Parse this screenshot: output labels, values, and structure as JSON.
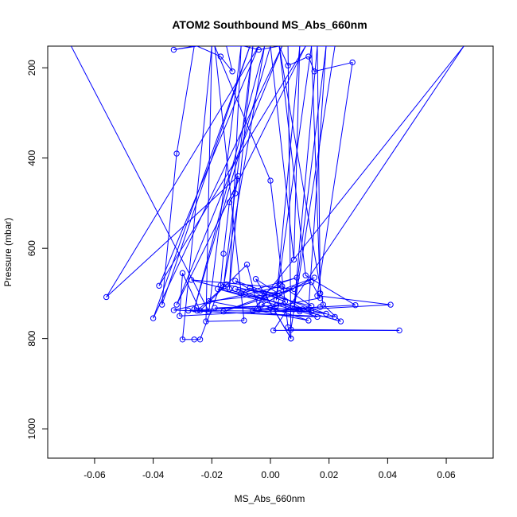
{
  "chart_data": {
    "type": "line",
    "title": "ATOM2 Southbound MS_Abs_660nm",
    "xlabel": "MS_Abs_660nm",
    "ylabel": "Pressure (mbar)",
    "xlim": [
      -0.076,
      0.076
    ],
    "ylim": [
      1065,
      152
    ],
    "y_reversed": true,
    "x_ticks": [
      -0.06,
      -0.04,
      -0.02,
      0.0,
      0.02,
      0.04,
      0.06
    ],
    "x_tick_labels": [
      "-0.06",
      "-0.04",
      "-0.02",
      "0.00",
      "0.02",
      "0.04",
      "0.06"
    ],
    "y_ticks": [
      200,
      400,
      600,
      800,
      1000
    ],
    "y_tick_labels": [
      "200",
      "400",
      "600",
      "800",
      "1000"
    ],
    "grid": false,
    "legend": "none",
    "series": [
      {
        "color": "#0000ff",
        "marker": "open-circle",
        "line": true,
        "points": [
          {
            "x": -0.068,
            "y": 152
          },
          {
            "x": -0.021,
            "y": 740
          },
          {
            "x": -0.01,
            "y": 152
          },
          {
            "x": -0.014,
            "y": 690
          },
          {
            "x": -0.006,
            "y": 152
          },
          {
            "x": -0.016,
            "y": 685
          },
          {
            "x": -0.002,
            "y": 152
          },
          {
            "x": -0.026,
            "y": 735
          },
          {
            "x": 0.0,
            "y": 152
          },
          {
            "x": 0.008,
            "y": 625
          },
          {
            "x": 0.01,
            "y": 152
          },
          {
            "x": 0.002,
            "y": 715
          },
          {
            "x": 0.014,
            "y": 152
          },
          {
            "x": 0.017,
            "y": 700
          },
          {
            "x": 0.016,
            "y": 152
          },
          {
            "x": 0.008,
            "y": 735
          },
          {
            "x": 0.019,
            "y": 152
          },
          {
            "x": 0.013,
            "y": 735
          },
          {
            "x": 0.041,
            "y": 725
          },
          {
            "x": 0.016,
            "y": 705
          },
          {
            "x": 0.028,
            "y": 188
          },
          {
            "x": 0.015,
            "y": 208
          },
          {
            "x": 0.013,
            "y": 175
          },
          {
            "x": 0.006,
            "y": 195
          },
          {
            "x": 0.003,
            "y": 152
          },
          {
            "x": -0.004,
            "y": 160
          },
          {
            "x": -0.009,
            "y": 152
          },
          {
            "x": -0.011,
            "y": 152
          },
          {
            "x": -0.015,
            "y": 152
          },
          {
            "x": -0.013,
            "y": 208
          },
          {
            "x": -0.017,
            "y": 175
          },
          {
            "x": -0.025,
            "y": 152
          },
          {
            "x": -0.033,
            "y": 160
          },
          {
            "x": -0.026,
            "y": 152
          },
          {
            "x": -0.032,
            "y": 390
          },
          {
            "x": -0.037,
            "y": 725
          },
          {
            "x": -0.007,
            "y": 152
          },
          {
            "x": -0.04,
            "y": 755
          },
          {
            "x": 0.004,
            "y": 152
          },
          {
            "x": -0.032,
            "y": 725
          },
          {
            "x": 0.012,
            "y": 152
          },
          {
            "x": -0.038,
            "y": 683
          },
          {
            "x": -0.004,
            "y": 152
          },
          {
            "x": -0.056,
            "y": 708
          },
          {
            "x": -0.011,
            "y": 440
          },
          {
            "x": -0.012,
            "y": 478
          },
          {
            "x": -0.014,
            "y": 498
          },
          {
            "x": -0.016,
            "y": 612
          },
          {
            "x": -0.017,
            "y": 682
          },
          {
            "x": -0.024,
            "y": 802
          },
          {
            "x": -0.026,
            "y": 802
          },
          {
            "x": -0.03,
            "y": 802
          },
          {
            "x": -0.02,
            "y": 152
          },
          {
            "x": -0.022,
            "y": 762
          },
          {
            "x": -0.009,
            "y": 760
          },
          {
            "x": -0.019,
            "y": 152
          },
          {
            "x": 0.0,
            "y": 450
          },
          {
            "x": 0.006,
            "y": 775
          },
          {
            "x": 0.007,
            "y": 800
          },
          {
            "x": 0.006,
            "y": 152
          },
          {
            "x": 0.022,
            "y": 152
          },
          {
            "x": 0.007,
            "y": 780
          },
          {
            "x": 0.044,
            "y": 782
          },
          {
            "x": 0.001,
            "y": 782
          },
          {
            "x": 0.066,
            "y": 152
          },
          {
            "x": -0.006,
            "y": 738
          },
          {
            "x": 0.029,
            "y": 726
          },
          {
            "x": 0.012,
            "y": 660
          },
          {
            "x": 0.003,
            "y": 152
          },
          {
            "x": 0.018,
            "y": 725
          },
          {
            "x": 0.024,
            "y": 762
          },
          {
            "x": 0.01,
            "y": 736
          },
          {
            "x": -0.031,
            "y": 750
          },
          {
            "x": -0.03,
            "y": 655
          },
          {
            "x": -0.024,
            "y": 738
          },
          {
            "x": -0.008,
            "y": 636
          },
          {
            "x": -0.004,
            "y": 736
          },
          {
            "x": 0.017,
            "y": 710
          },
          {
            "x": 0.014,
            "y": 675
          },
          {
            "x": -0.002,
            "y": 710
          },
          {
            "x": -0.012,
            "y": 672
          },
          {
            "x": 0.022,
            "y": 752
          },
          {
            "x": -0.033,
            "y": 737
          },
          {
            "x": 0.004,
            "y": 684
          },
          {
            "x": 0.014,
            "y": 728
          },
          {
            "x": -0.015,
            "y": 680
          },
          {
            "x": -0.025,
            "y": 738
          },
          {
            "x": 0.014,
            "y": 740
          },
          {
            "x": -0.027,
            "y": 670
          },
          {
            "x": 0.008,
            "y": 690
          },
          {
            "x": -0.016,
            "y": 740
          },
          {
            "x": 0.015,
            "y": 665
          },
          {
            "x": -0.003,
            "y": 725
          },
          {
            "x": 0.013,
            "y": 760
          },
          {
            "x": -0.021,
            "y": 717
          },
          {
            "x": 0.003,
            "y": 700
          },
          {
            "x": -0.012,
            "y": 690
          },
          {
            "x": 0.016,
            "y": 752
          },
          {
            "x": -0.028,
            "y": 738
          },
          {
            "x": 0.002,
            "y": 727
          },
          {
            "x": -0.019,
            "y": 732
          },
          {
            "x": 0.011,
            "y": 735
          },
          {
            "x": -0.005,
            "y": 668
          },
          {
            "x": 0.007,
            "y": 800
          },
          {
            "x": -0.002,
            "y": 700
          },
          {
            "x": 0.003,
            "y": 678
          },
          {
            "x": 0.009,
            "y": 665
          },
          {
            "x": -0.01,
            "y": 700
          },
          {
            "x": -0.007,
            "y": 688
          },
          {
            "x": 0.005,
            "y": 718
          },
          {
            "x": 0.0,
            "y": 732
          },
          {
            "x": 0.019,
            "y": 745
          },
          {
            "x": -0.018,
            "y": 690
          },
          {
            "x": 0.01,
            "y": 740
          },
          {
            "x": 0.001,
            "y": 740
          },
          {
            "x": 0.017,
            "y": 730
          }
        ]
      }
    ]
  }
}
